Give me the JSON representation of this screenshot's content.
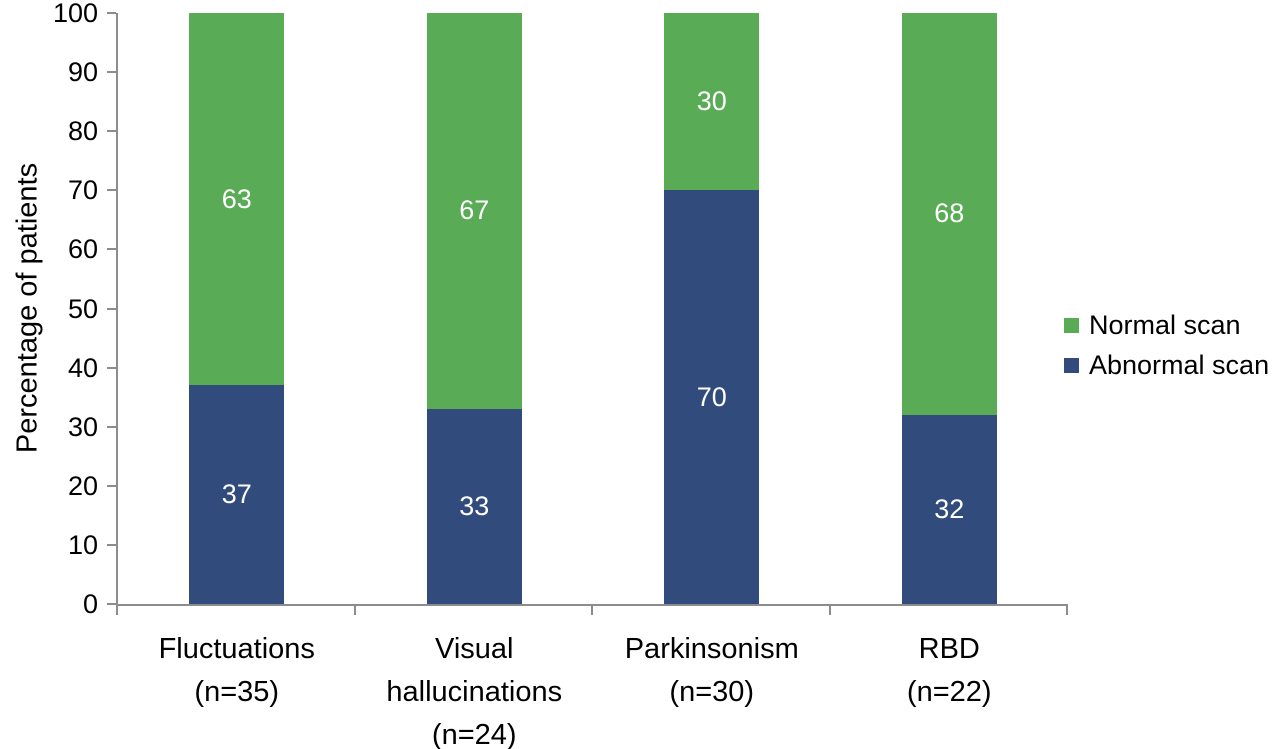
{
  "figure": {
    "background": "#ffffff",
    "text_color": "#000000",
    "axis_color": "#8c8c8c",
    "value_label_color": "#ffffff"
  },
  "chart_data": {
    "type": "bar",
    "stacked": true,
    "title": "",
    "xlabel": "",
    "ylabel": "Percentage of patients",
    "ylim": [
      0,
      100
    ],
    "ytick_step": 10,
    "grid": false,
    "legend": {
      "position": "right",
      "order": [
        1,
        0
      ]
    },
    "categories": [
      "Fluctuations (n=35)",
      "Visual hallucinations (n=24)",
      "Parkinsonism (n=30)",
      "RBD (n=22)"
    ],
    "category_label_lines": [
      [
        "Fluctuations",
        "(n=35)"
      ],
      [
        "Visual",
        "hallucinations",
        "(n=24)"
      ],
      [
        "Parkinsonism",
        "(n=30)"
      ],
      [
        "RBD",
        "(n=22)"
      ]
    ],
    "series": [
      {
        "name": "Abnormal scan",
        "color": "#314b7c",
        "values": [
          37,
          33,
          70,
          32
        ]
      },
      {
        "name": "Normal scan",
        "color": "#5aab55",
        "values": [
          63,
          67,
          30,
          68
        ]
      }
    ]
  }
}
